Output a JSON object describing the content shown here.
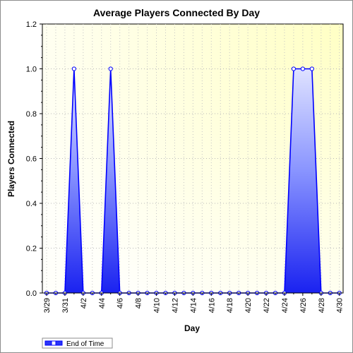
{
  "chart_data": {
    "type": "area",
    "title": "Average Players Connected By Day",
    "xlabel": "Day",
    "ylabel": "Players Connected",
    "ylim": [
      0,
      1.2
    ],
    "y_ticks": [
      "0.0",
      "0.2",
      "0.4",
      "0.6",
      "0.8",
      "1.0",
      "1.2"
    ],
    "x_tick_labels": [
      "3/29",
      "3/31",
      "4/2",
      "4/4",
      "4/6",
      "4/8",
      "4/10",
      "4/12",
      "4/14",
      "4/16",
      "4/18",
      "4/20",
      "4/22",
      "4/24",
      "4/26",
      "4/28",
      "4/30"
    ],
    "x": [
      "3/29",
      "3/30",
      "3/31",
      "4/1",
      "4/2",
      "4/3",
      "4/4",
      "4/5",
      "4/6",
      "4/7",
      "4/8",
      "4/9",
      "4/10",
      "4/11",
      "4/12",
      "4/13",
      "4/14",
      "4/15",
      "4/16",
      "4/17",
      "4/18",
      "4/19",
      "4/20",
      "4/21",
      "4/22",
      "4/23",
      "4/24",
      "4/25",
      "4/26",
      "4/27",
      "4/28",
      "4/29",
      "4/30"
    ],
    "series": [
      {
        "name": "End of Time",
        "values": [
          0,
          0,
          0,
          1,
          0,
          0,
          0,
          1,
          0,
          0,
          0,
          0,
          0,
          0,
          0,
          0,
          0,
          0,
          0,
          0,
          0,
          0,
          0,
          0,
          0,
          0,
          0,
          1,
          1,
          1,
          0,
          0,
          0
        ]
      }
    ],
    "grid": true,
    "legend_position": "bottom-left",
    "colors": {
      "line": "#0000ff",
      "fill_light": "#c0c8ff",
      "fill_dark": "#1010ee",
      "plot_bg": "#fffff0",
      "plot_bg_corner": "#ffffc8"
    }
  }
}
